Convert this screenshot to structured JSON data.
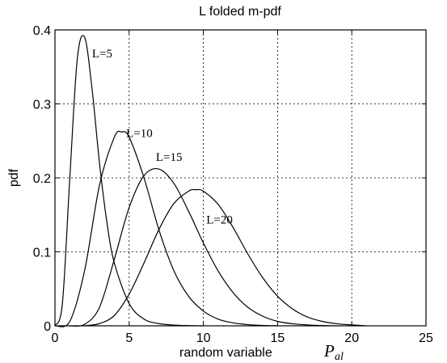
{
  "chart_data": {
    "type": "line",
    "title": "L folded m-pdf",
    "xlabel": "random variable",
    "xlabel_symbol": "P",
    "xlabel_symbol_sub": "al",
    "ylabel": "pdf",
    "xlim": [
      0,
      25
    ],
    "ylim": [
      0,
      0.4
    ],
    "xticks": [
      "0",
      "5",
      "10",
      "15",
      "20",
      "25"
    ],
    "yticks": [
      "0",
      "0.1",
      "0.2",
      "0.3",
      "0.4"
    ],
    "grid": true,
    "series": [
      {
        "name": "L=5",
        "x": [
          0,
          0.5,
          1,
          1.5,
          2,
          2.5,
          3,
          3.5,
          4,
          5,
          6,
          7,
          8,
          9,
          10
        ],
        "y": [
          0,
          0.03,
          0.2,
          0.36,
          0.39,
          0.32,
          0.22,
          0.14,
          0.085,
          0.03,
          0.009,
          0.003,
          0.001,
          0.0003,
          0
        ]
      },
      {
        "name": "L=10",
        "x": [
          0,
          1,
          2,
          3,
          4,
          4.5,
          5,
          6,
          7,
          8,
          9,
          10,
          11,
          12,
          13,
          14,
          15
        ],
        "y": [
          0,
          0.006,
          0.075,
          0.19,
          0.255,
          0.262,
          0.255,
          0.2,
          0.13,
          0.075,
          0.04,
          0.02,
          0.009,
          0.004,
          0.0016,
          0.0006,
          0
        ]
      },
      {
        "name": "L=15",
        "x": [
          1,
          2,
          3,
          4,
          5,
          6,
          7,
          8,
          9,
          10,
          11,
          12,
          13,
          14,
          15,
          16,
          17,
          18,
          19
        ],
        "y": [
          0,
          0.002,
          0.025,
          0.09,
          0.16,
          0.203,
          0.212,
          0.193,
          0.155,
          0.112,
          0.074,
          0.045,
          0.025,
          0.013,
          0.006,
          0.0028,
          0.0012,
          0.0004,
          0
        ]
      },
      {
        "name": "L=20",
        "x": [
          2,
          3,
          4,
          5,
          6,
          7,
          8,
          9,
          9.5,
          10,
          11,
          12,
          13,
          14,
          15,
          16,
          17,
          18,
          19,
          20,
          21
        ],
        "y": [
          0,
          0.003,
          0.014,
          0.043,
          0.085,
          0.13,
          0.165,
          0.182,
          0.184,
          0.182,
          0.164,
          0.133,
          0.097,
          0.065,
          0.04,
          0.023,
          0.012,
          0.006,
          0.0028,
          0.0012,
          0
        ]
      }
    ],
    "annotations": [
      {
        "text": "L=5",
        "x": 2.5,
        "y": 0.363
      },
      {
        "text": "L=10",
        "x": 4.8,
        "y": 0.255
      },
      {
        "text": "L=15",
        "x": 6.8,
        "y": 0.223
      },
      {
        "text": "L=20",
        "x": 10.2,
        "y": 0.138
      }
    ]
  }
}
